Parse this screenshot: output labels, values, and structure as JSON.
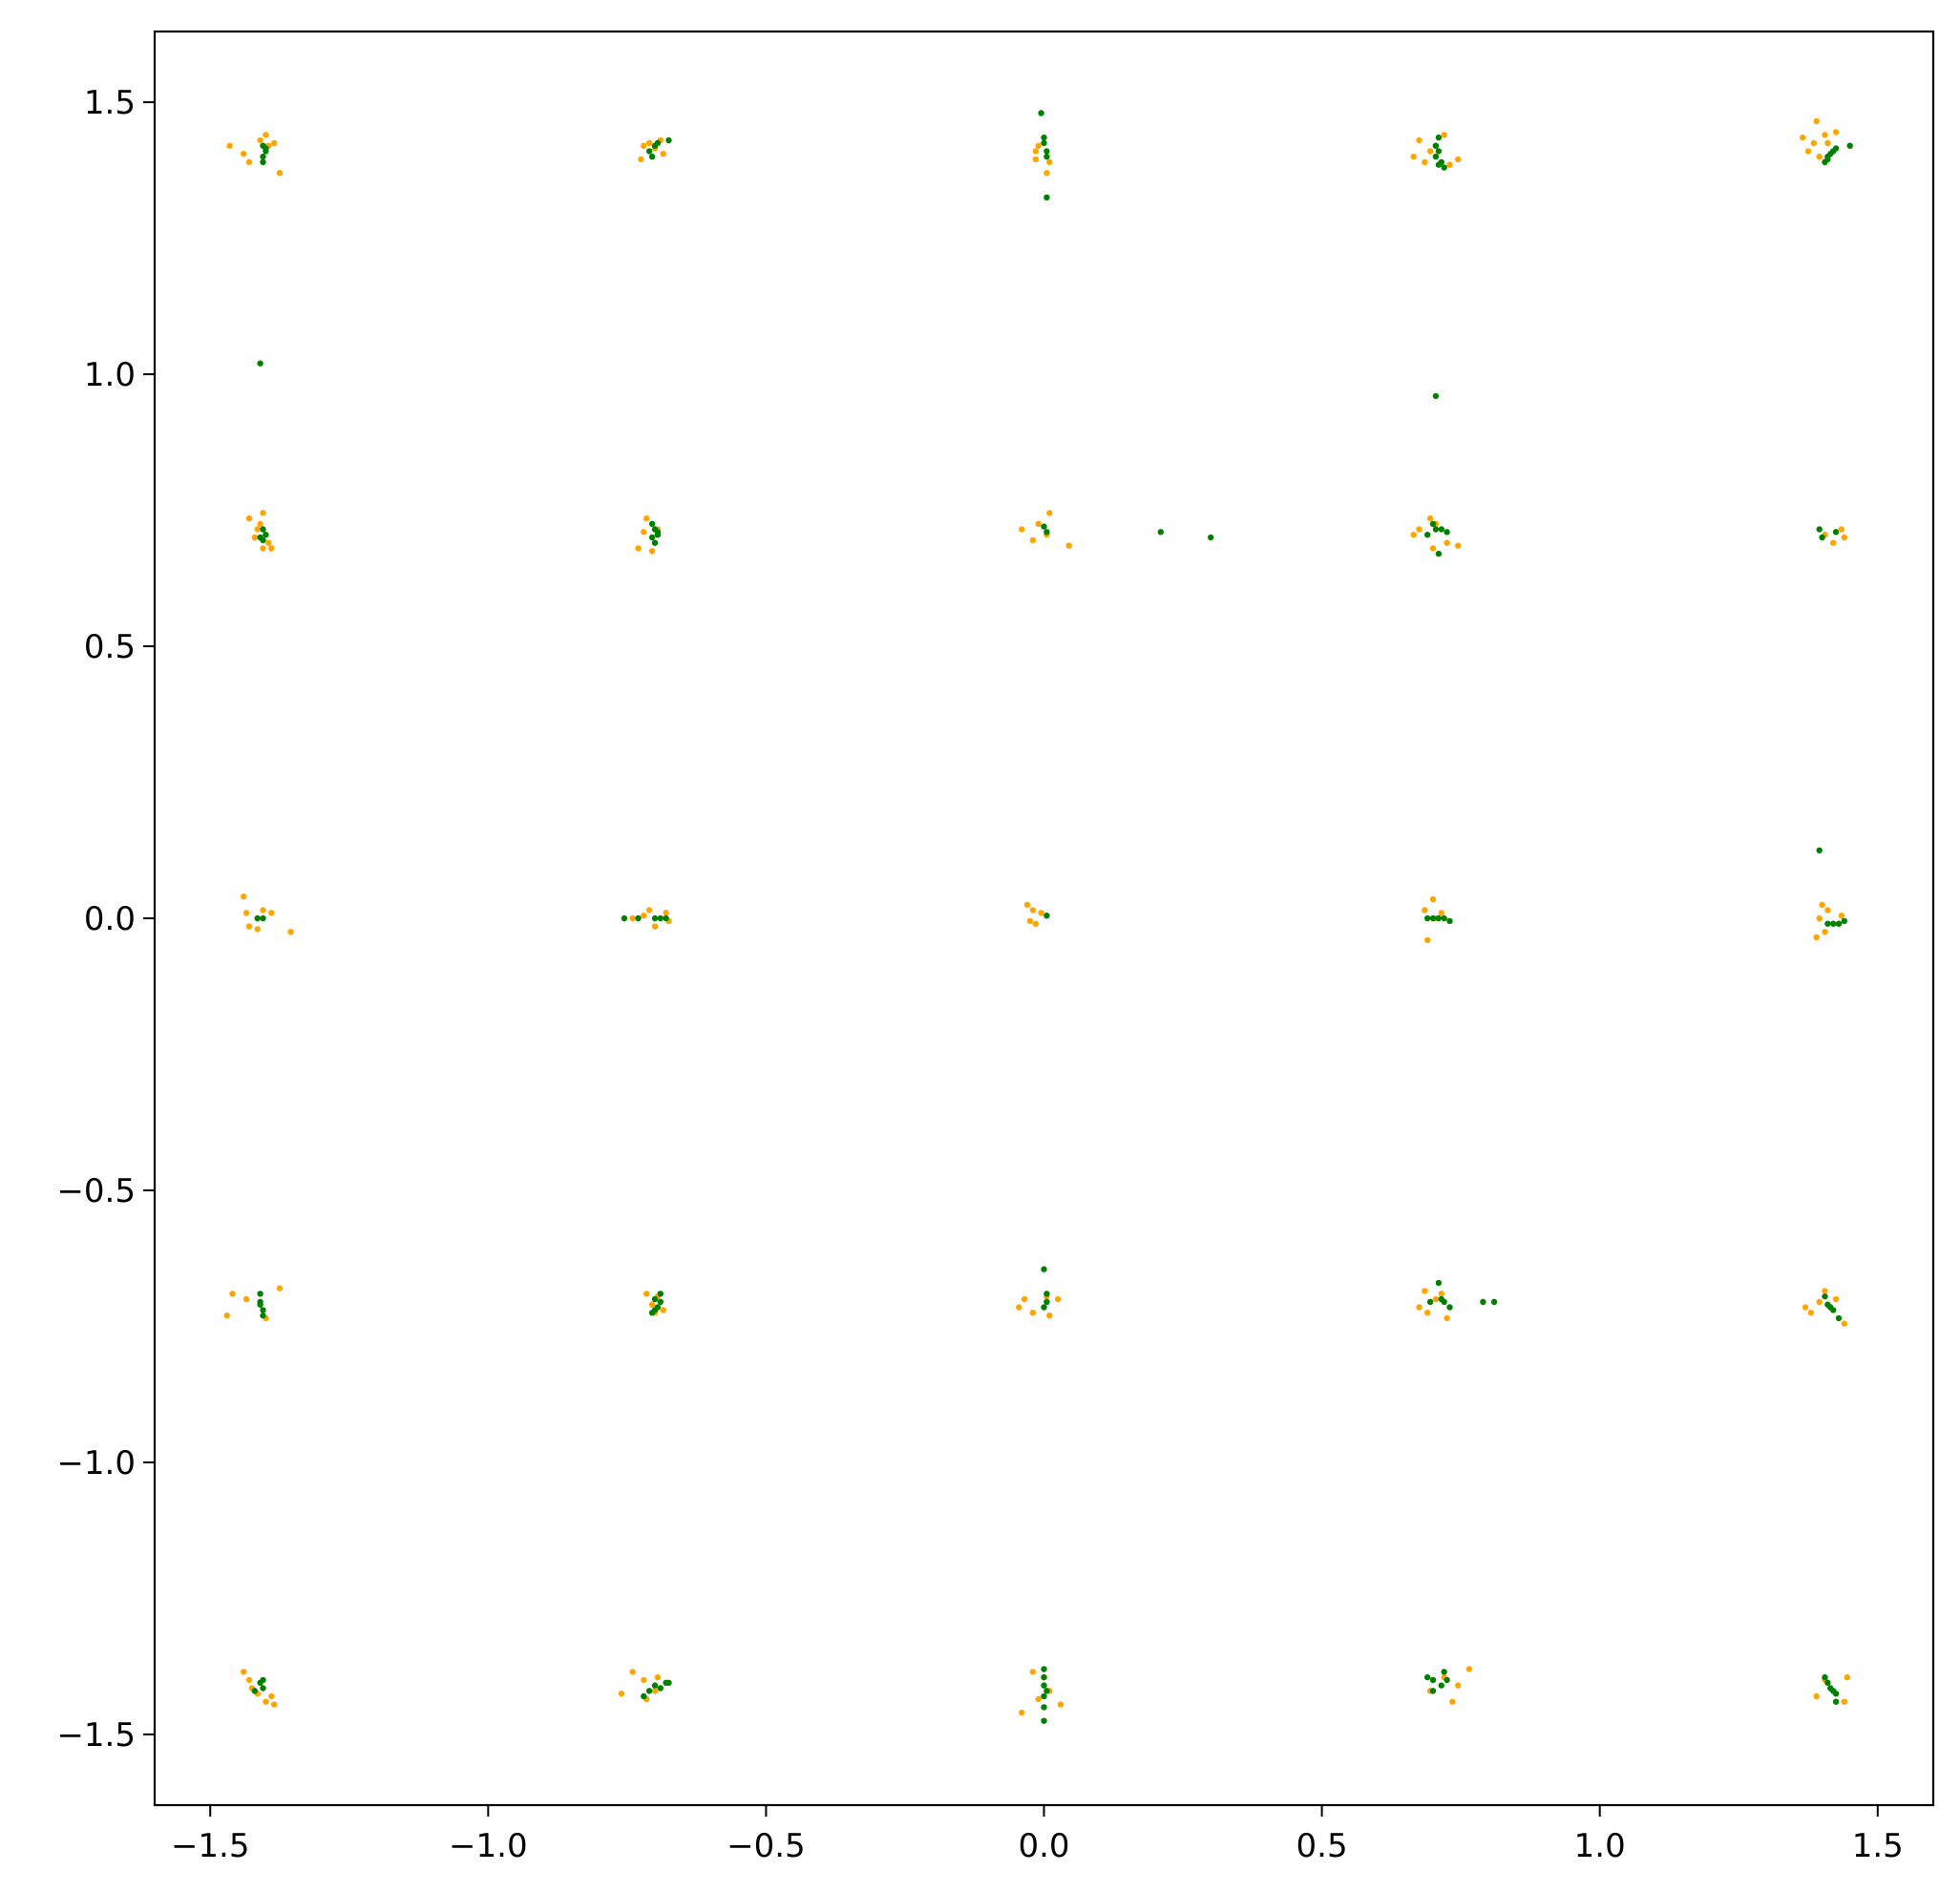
{
  "chart_data": {
    "type": "scatter",
    "title": "",
    "xlabel": "",
    "ylabel": "",
    "xlim": [
      -1.6,
      1.6
    ],
    "ylim": [
      -1.63,
      1.63
    ],
    "grid": false,
    "legend": "none",
    "x_ticks": [
      -1.5,
      -1.0,
      -0.5,
      0.0,
      0.5,
      1.0,
      1.5
    ],
    "x_tick_labels": [
      "−1.5",
      "−1.0",
      "−0.5",
      "0.0",
      "0.5",
      "1.0",
      "1.5"
    ],
    "y_ticks": [
      1.5,
      1.0,
      0.5,
      0.0,
      -0.5,
      -1.0,
      -1.5
    ],
    "y_tick_labels": [
      "1.5",
      "1.0",
      "0.5",
      "0.0",
      "−0.5",
      "−1.0",
      "−1.5"
    ],
    "series": [
      {
        "color": "#ffa500",
        "points": [
          [
            -1.465,
            1.42
          ],
          [
            -1.44,
            1.405
          ],
          [
            -1.43,
            1.39
          ],
          [
            -1.41,
            1.43
          ],
          [
            -1.4,
            1.44
          ],
          [
            -1.395,
            1.42
          ],
          [
            -1.385,
            1.425
          ],
          [
            -1.375,
            1.37
          ],
          [
            -0.725,
            1.395
          ],
          [
            -0.72,
            1.42
          ],
          [
            -0.71,
            1.425
          ],
          [
            -0.7,
            1.415
          ],
          [
            -0.69,
            1.43
          ],
          [
            -0.685,
            1.405
          ],
          [
            -0.015,
            1.41
          ],
          [
            -0.015,
            1.395
          ],
          [
            -0.01,
            1.42
          ],
          [
            0.005,
            1.37
          ],
          [
            0.01,
            1.39
          ],
          [
            0.665,
            1.4
          ],
          [
            0.675,
            1.43
          ],
          [
            0.685,
            1.39
          ],
          [
            0.695,
            1.41
          ],
          [
            0.705,
            1.42
          ],
          [
            0.73,
            1.385
          ],
          [
            0.72,
            1.44
          ],
          [
            0.745,
            1.395
          ],
          [
            1.365,
            1.435
          ],
          [
            1.375,
            1.41
          ],
          [
            1.385,
            1.425
          ],
          [
            1.39,
            1.465
          ],
          [
            1.395,
            1.4
          ],
          [
            1.405,
            1.44
          ],
          [
            1.41,
            1.425
          ],
          [
            1.425,
            1.445
          ],
          [
            -1.43,
            0.735
          ],
          [
            -1.42,
            0.7
          ],
          [
            -1.415,
            0.715
          ],
          [
            -1.41,
            0.725
          ],
          [
            -1.405,
            0.745
          ],
          [
            -1.405,
            0.68
          ],
          [
            -1.395,
            0.69
          ],
          [
            -1.39,
            0.68
          ],
          [
            -0.73,
            0.68
          ],
          [
            -0.72,
            0.71
          ],
          [
            -0.715,
            0.735
          ],
          [
            -0.705,
            0.675
          ],
          [
            -0.695,
            0.715
          ],
          [
            -0.04,
            0.715
          ],
          [
            -0.02,
            0.695
          ],
          [
            -0.01,
            0.725
          ],
          [
            0.005,
            0.705
          ],
          [
            0.01,
            0.745
          ],
          [
            0.045,
            0.685
          ],
          [
            0.665,
            0.705
          ],
          [
            0.675,
            0.715
          ],
          [
            0.695,
            0.735
          ],
          [
            0.7,
            0.68
          ],
          [
            0.705,
            0.725
          ],
          [
            0.725,
            0.69
          ],
          [
            0.745,
            0.685
          ],
          [
            1.405,
            0.705
          ],
          [
            1.42,
            0.69
          ],
          [
            1.435,
            0.715
          ],
          [
            1.44,
            0.7
          ],
          [
            -1.44,
            0.04
          ],
          [
            -1.435,
            0.01
          ],
          [
            -1.43,
            -0.015
          ],
          [
            -1.415,
            -0.02
          ],
          [
            -1.405,
            0.015
          ],
          [
            -1.39,
            0.01
          ],
          [
            -1.355,
            -0.025
          ],
          [
            -0.74,
            0.0
          ],
          [
            -0.72,
            0.005
          ],
          [
            -0.71,
            0.015
          ],
          [
            -0.7,
            -0.015
          ],
          [
            -0.68,
            0.01
          ],
          [
            -0.675,
            -0.005
          ],
          [
            -0.03,
            0.025
          ],
          [
            -0.025,
            -0.005
          ],
          [
            -0.02,
            0.015
          ],
          [
            -0.015,
            -0.01
          ],
          [
            -0.005,
            0.01
          ],
          [
            0.685,
            0.015
          ],
          [
            0.69,
            -0.04
          ],
          [
            0.7,
            0.035
          ],
          [
            0.705,
            0.0
          ],
          [
            0.715,
            0.01
          ],
          [
            1.39,
            -0.035
          ],
          [
            1.395,
            0.0
          ],
          [
            1.4,
            0.025
          ],
          [
            1.405,
            -0.025
          ],
          [
            1.41,
            0.015
          ],
          [
            1.43,
            -0.01
          ],
          [
            1.435,
            0.005
          ],
          [
            -1.47,
            -0.73
          ],
          [
            -1.46,
            -0.69
          ],
          [
            -1.435,
            -0.7
          ],
          [
            -1.4,
            -0.735
          ],
          [
            -1.375,
            -0.68
          ],
          [
            -0.715,
            -0.69
          ],
          [
            -0.705,
            -0.71
          ],
          [
            -0.7,
            -0.725
          ],
          [
            -0.695,
            -0.695
          ],
          [
            -0.685,
            -0.72
          ],
          [
            -0.045,
            -0.715
          ],
          [
            -0.035,
            -0.7
          ],
          [
            -0.02,
            -0.725
          ],
          [
            0.005,
            -0.695
          ],
          [
            0.01,
            -0.73
          ],
          [
            0.025,
            -0.7
          ],
          [
            0.675,
            -0.715
          ],
          [
            0.685,
            -0.685
          ],
          [
            0.69,
            -0.725
          ],
          [
            0.705,
            -0.7
          ],
          [
            0.715,
            -0.69
          ],
          [
            0.725,
            -0.735
          ],
          [
            1.37,
            -0.715
          ],
          [
            1.38,
            -0.725
          ],
          [
            1.395,
            -0.705
          ],
          [
            1.405,
            -0.685
          ],
          [
            1.425,
            -0.7
          ],
          [
            1.44,
            -0.745
          ],
          [
            -1.44,
            -1.385
          ],
          [
            -1.43,
            -1.4
          ],
          [
            -1.425,
            -1.415
          ],
          [
            -1.415,
            -1.425
          ],
          [
            -1.4,
            -1.44
          ],
          [
            -1.39,
            -1.43
          ],
          [
            -1.385,
            -1.445
          ],
          [
            -0.76,
            -1.425
          ],
          [
            -0.74,
            -1.385
          ],
          [
            -0.72,
            -1.4
          ],
          [
            -0.715,
            -1.435
          ],
          [
            -0.7,
            -1.42
          ],
          [
            -0.695,
            -1.395
          ],
          [
            -0.04,
            -1.46
          ],
          [
            -0.02,
            -1.385
          ],
          [
            -0.01,
            -1.435
          ],
          [
            0.0,
            -1.395
          ],
          [
            0.01,
            -1.42
          ],
          [
            0.03,
            -1.445
          ],
          [
            0.695,
            -1.42
          ],
          [
            0.7,
            -1.4
          ],
          [
            0.72,
            -1.395
          ],
          [
            0.735,
            -1.44
          ],
          [
            0.745,
            -1.41
          ],
          [
            0.765,
            -1.38
          ],
          [
            1.39,
            -1.43
          ],
          [
            1.405,
            -1.4
          ],
          [
            1.425,
            -1.425
          ],
          [
            1.44,
            -1.44
          ],
          [
            1.445,
            -1.395
          ]
        ]
      },
      {
        "color": "#008000",
        "points": [
          [
            -1.405,
            1.42
          ],
          [
            -1.405,
            1.4
          ],
          [
            -1.4,
            1.41
          ],
          [
            -1.4,
            1.415
          ],
          [
            -1.405,
            1.39
          ],
          [
            -0.71,
            1.41
          ],
          [
            -0.7,
            1.42
          ],
          [
            -0.705,
            1.4
          ],
          [
            -0.695,
            1.425
          ],
          [
            -0.675,
            1.43
          ],
          [
            -0.005,
            1.48
          ],
          [
            0.0,
            1.435
          ],
          [
            0.0,
            1.425
          ],
          [
            0.005,
            1.41
          ],
          [
            0.005,
            1.4
          ],
          [
            0.005,
            1.325
          ],
          [
            0.71,
            1.435
          ],
          [
            0.705,
            1.42
          ],
          [
            0.71,
            1.41
          ],
          [
            0.705,
            1.4
          ],
          [
            0.715,
            1.39
          ],
          [
            0.71,
            1.385
          ],
          [
            0.72,
            1.38
          ],
          [
            1.405,
            1.39
          ],
          [
            1.41,
            1.4
          ],
          [
            1.415,
            1.405
          ],
          [
            1.42,
            1.41
          ],
          [
            1.425,
            1.415
          ],
          [
            1.45,
            1.42
          ],
          [
            1.41,
            1.395
          ],
          [
            -1.41,
            1.02
          ],
          [
            0.705,
            0.96
          ],
          [
            -1.405,
            0.715
          ],
          [
            -1.41,
            0.7
          ],
          [
            -1.405,
            0.695
          ],
          [
            -1.4,
            0.705
          ],
          [
            -0.705,
            0.725
          ],
          [
            -0.7,
            0.715
          ],
          [
            -0.695,
            0.71
          ],
          [
            -0.705,
            0.7
          ],
          [
            -0.7,
            0.69
          ],
          [
            -0.695,
            0.705
          ],
          [
            0.0,
            0.72
          ],
          [
            0.005,
            0.71
          ],
          [
            0.21,
            0.71
          ],
          [
            0.3,
            0.7
          ],
          [
            0.7,
            0.725
          ],
          [
            0.705,
            0.715
          ],
          [
            0.715,
            0.715
          ],
          [
            0.725,
            0.71
          ],
          [
            0.71,
            0.67
          ],
          [
            0.69,
            0.705
          ],
          [
            1.395,
            0.715
          ],
          [
            1.4,
            0.7
          ],
          [
            1.425,
            0.71
          ],
          [
            1.395,
            0.125
          ],
          [
            -1.415,
            0.0
          ],
          [
            -1.405,
            0.0
          ],
          [
            -0.755,
            0.0
          ],
          [
            -0.73,
            0.0
          ],
          [
            -0.7,
            0.0
          ],
          [
            -0.69,
            0.0
          ],
          [
            -0.68,
            0.0
          ],
          [
            0.005,
            0.005
          ],
          [
            0.69,
            0.0
          ],
          [
            0.7,
            0.0
          ],
          [
            0.71,
            0.0
          ],
          [
            0.72,
            0.0
          ],
          [
            0.73,
            -0.005
          ],
          [
            1.41,
            -0.01
          ],
          [
            1.42,
            -0.01
          ],
          [
            1.43,
            -0.01
          ],
          [
            1.44,
            -0.005
          ],
          [
            -1.41,
            -0.69
          ],
          [
            -1.41,
            -0.71
          ],
          [
            -1.405,
            -0.72
          ],
          [
            -1.405,
            -0.73
          ],
          [
            -1.41,
            -0.705
          ],
          [
            -0.7,
            -0.7
          ],
          [
            -0.695,
            -0.715
          ],
          [
            -0.69,
            -0.69
          ],
          [
            -0.7,
            -0.72
          ],
          [
            -0.705,
            -0.725
          ],
          [
            -0.69,
            -0.705
          ],
          [
            0.0,
            -0.645
          ],
          [
            0.005,
            -0.69
          ],
          [
            0.005,
            -0.705
          ],
          [
            0.0,
            -0.715
          ],
          [
            0.695,
            -0.705
          ],
          [
            0.71,
            -0.67
          ],
          [
            0.715,
            -0.7
          ],
          [
            0.72,
            -0.705
          ],
          [
            0.73,
            -0.715
          ],
          [
            0.79,
            -0.705
          ],
          [
            0.81,
            -0.705
          ],
          [
            1.405,
            -0.695
          ],
          [
            1.41,
            -0.71
          ],
          [
            1.415,
            -0.715
          ],
          [
            1.42,
            -0.72
          ],
          [
            1.43,
            -0.735
          ],
          [
            -1.405,
            -1.415
          ],
          [
            -1.42,
            -1.42
          ],
          [
            -1.41,
            -1.405
          ],
          [
            -1.405,
            -1.4
          ],
          [
            -0.71,
            -1.42
          ],
          [
            -0.7,
            -1.41
          ],
          [
            -0.68,
            -1.405
          ],
          [
            -0.69,
            -1.415
          ],
          [
            -0.675,
            -1.405
          ],
          [
            -0.72,
            -1.43
          ],
          [
            0.0,
            -1.38
          ],
          [
            0.0,
            -1.395
          ],
          [
            0.0,
            -1.41
          ],
          [
            0.005,
            -1.42
          ],
          [
            0.0,
            -1.43
          ],
          [
            0.0,
            -1.45
          ],
          [
            0.0,
            -1.475
          ],
          [
            0.69,
            -1.395
          ],
          [
            0.7,
            -1.4
          ],
          [
            0.715,
            -1.41
          ],
          [
            0.725,
            -1.4
          ],
          [
            0.7,
            -1.42
          ],
          [
            0.72,
            -1.385
          ],
          [
            1.405,
            -1.395
          ],
          [
            1.41,
            -1.405
          ],
          [
            1.415,
            -1.415
          ],
          [
            1.42,
            -1.42
          ],
          [
            1.425,
            -1.425
          ],
          [
            1.425,
            -1.44
          ]
        ]
      }
    ]
  }
}
